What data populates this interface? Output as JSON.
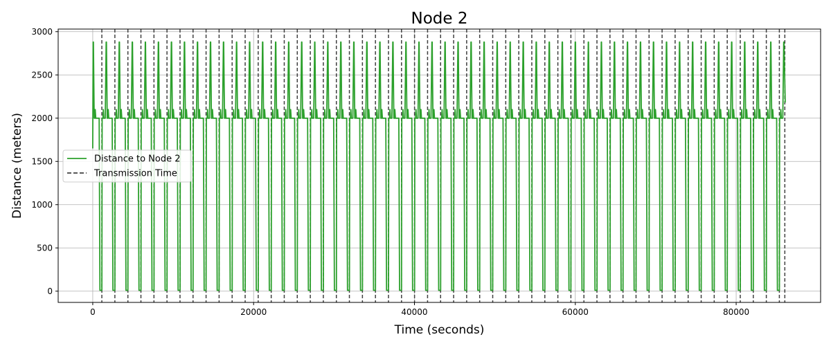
{
  "chart_data": {
    "type": "line",
    "title": "Node 2",
    "xlabel": "Time (seconds)",
    "ylabel": "Distance (meters)",
    "xlim": [
      -4300,
      90500
    ],
    "ylim": [
      -130,
      3030
    ],
    "x_ticks": [
      0,
      20000,
      40000,
      60000,
      80000
    ],
    "x_tick_labels": [
      "0",
      "20000",
      "40000",
      "60000",
      "80000"
    ],
    "y_ticks": [
      0,
      500,
      1000,
      1500,
      2000,
      2500,
      3000
    ],
    "y_tick_labels": [
      "0",
      "500",
      "1000",
      "1500",
      "2000",
      "2500",
      "3000"
    ],
    "grid": true,
    "legend_position": "center-left",
    "series": [
      {
        "name": "Distance to Node 2",
        "color": "#2ca02c",
        "style": "solid",
        "pattern": {
          "start_time": 0,
          "start_value": 1650,
          "period_seconds": 1620,
          "cycles": 53,
          "baseline": 2000,
          "peak_high": 2880,
          "peak_low": 2100,
          "trough": 10,
          "end_time": 86100,
          "end_value": 2180
        }
      },
      {
        "name": "Transmission Time",
        "color": "#404040",
        "style": "dashed",
        "x": [
          1130,
          2750,
          4370,
          5990,
          7610,
          9230,
          10850,
          12470,
          14090,
          15710,
          17330,
          18950,
          20570,
          22190,
          23810,
          25430,
          27050,
          28670,
          30290,
          31910,
          33530,
          35150,
          36770,
          38390,
          40010,
          41630,
          43250,
          44870,
          46490,
          48110,
          49730,
          51350,
          52970,
          54590,
          56210,
          57830,
          59450,
          61070,
          62690,
          64310,
          65930,
          67550,
          69170,
          70790,
          72410,
          74030,
          75650,
          77270,
          78890,
          80510,
          82130,
          83750,
          85370,
          86050
        ]
      }
    ]
  }
}
